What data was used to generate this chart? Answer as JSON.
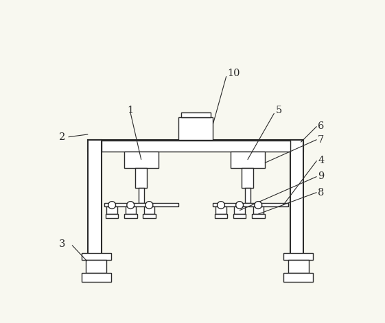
{
  "bg_color": "#F8F8F0",
  "line_color": "#2a2a2a",
  "fig_width": 5.61,
  "fig_height": 4.71,
  "dpi": 100
}
